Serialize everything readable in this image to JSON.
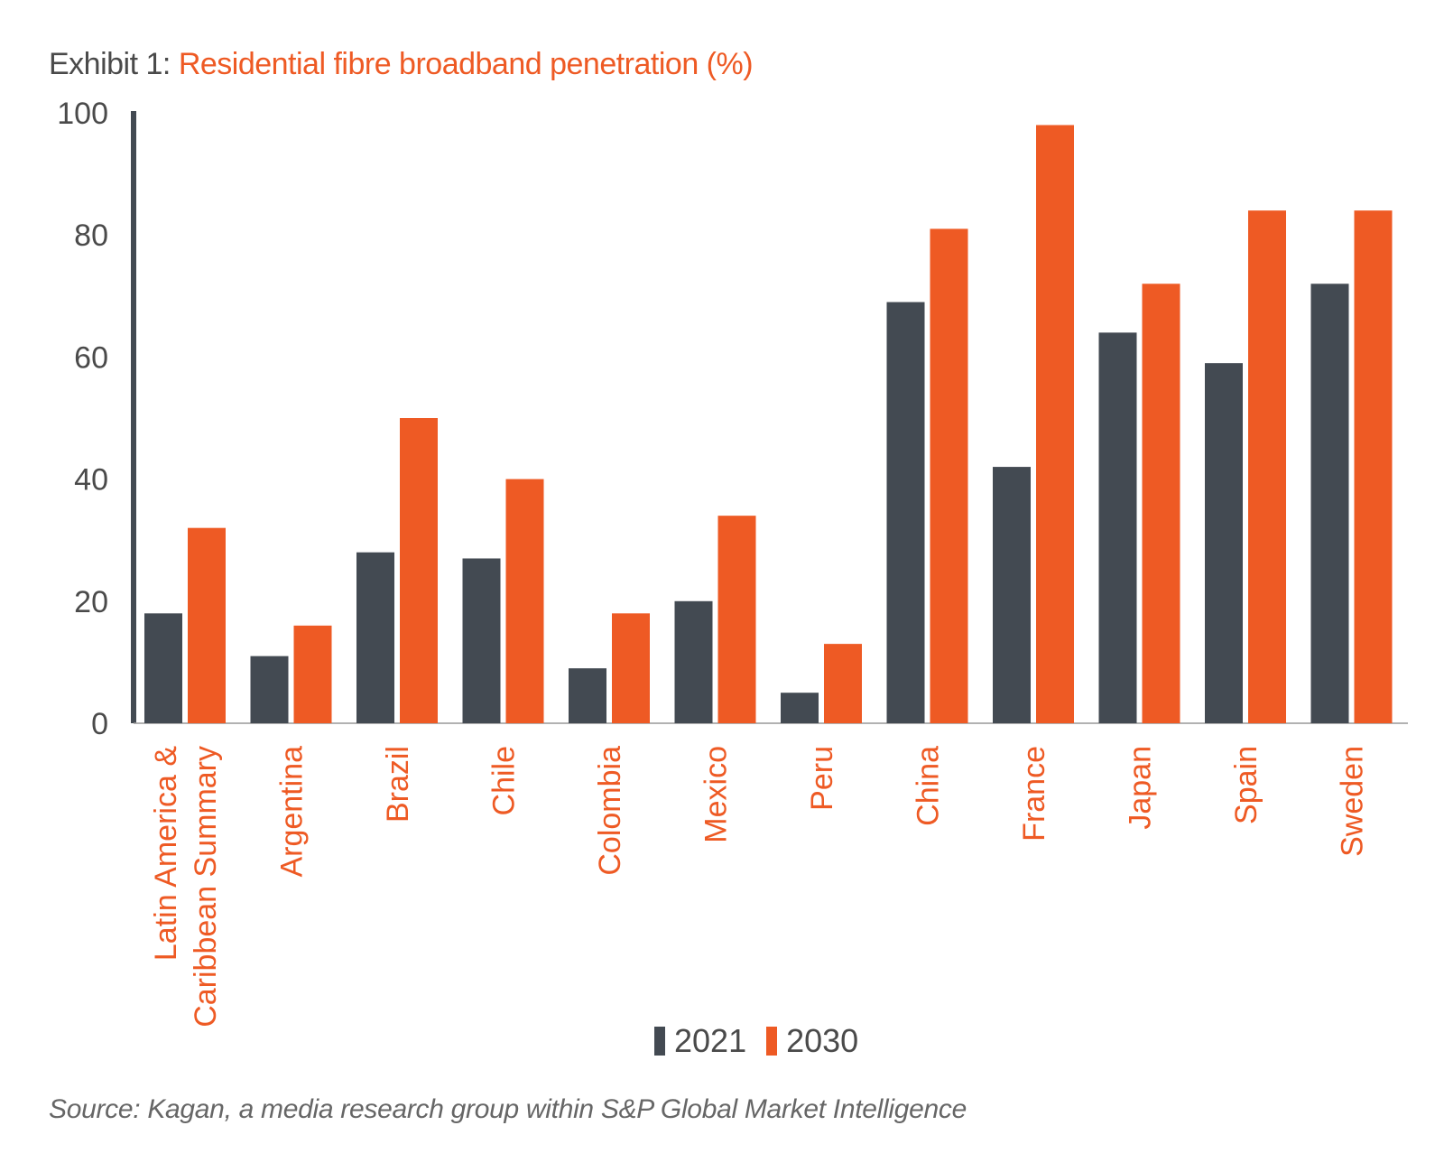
{
  "title": {
    "prefix": "Exhibit 1: ",
    "main": "Residential fibre broadband penetration (%)"
  },
  "source": "Source: Kagan, a media research group within S&P Global Market Intelligence",
  "colors": {
    "series_2021": "#434a52",
    "series_2030": "#ee5a24",
    "axis": "#999999",
    "tick_text": "#4a4a4a",
    "category_text": "#ee5a24"
  },
  "chart_data": {
    "type": "bar",
    "categories": [
      "Latin America & Caribbean Summary",
      "Argentina",
      "Brazil",
      "Chile",
      "Colombia",
      "Mexico",
      "Peru",
      "China",
      "France",
      "Japan",
      "Spain",
      "Sweden"
    ],
    "series": [
      {
        "name": "2021",
        "values": [
          18,
          11,
          28,
          27,
          9,
          20,
          5,
          69,
          42,
          64,
          59,
          72
        ]
      },
      {
        "name": "2030",
        "values": [
          32,
          16,
          50,
          40,
          18,
          34,
          13,
          81,
          98,
          72,
          84,
          84
        ]
      }
    ],
    "yticks": [
      0,
      20,
      40,
      60,
      80,
      100
    ],
    "ylim": [
      0,
      100
    ],
    "legend": "bottom-center"
  }
}
